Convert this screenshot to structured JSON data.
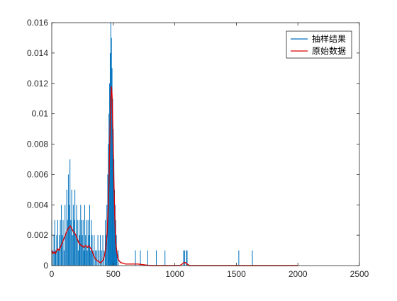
{
  "chart_data": {
    "type": "line",
    "title": "",
    "xlabel": "",
    "ylabel": "",
    "xlim": [
      0,
      2500
    ],
    "ylim": [
      0,
      0.016
    ],
    "x_ticks": [
      0,
      500,
      1000,
      1500,
      2000,
      2500
    ],
    "x_tick_labels": [
      "0",
      "500",
      "1000",
      "1500",
      "2000",
      "2500"
    ],
    "y_ticks": [
      0,
      0.002,
      0.004,
      0.006,
      0.008,
      0.01,
      0.012,
      0.014,
      0.016
    ],
    "y_tick_labels": [
      "0",
      "0.002",
      "0.004",
      "0.006",
      "0.008",
      "0.01",
      "0.012",
      "0.014",
      "0.016"
    ],
    "grid": false,
    "legend_position": "top-right",
    "series": [
      {
        "name": "抽样结果",
        "color": "#0072BD",
        "style": "impulse",
        "points": [
          [
            0,
            0.003
          ],
          [
            10,
            0.001
          ],
          [
            18,
            0.002
          ],
          [
            25,
            0.003
          ],
          [
            32,
            0.001
          ],
          [
            40,
            0.002
          ],
          [
            48,
            0.003
          ],
          [
            55,
            0.001
          ],
          [
            62,
            0.002
          ],
          [
            70,
            0.003
          ],
          [
            78,
            0.004
          ],
          [
            85,
            0.002
          ],
          [
            92,
            0.003
          ],
          [
            100,
            0.001
          ],
          [
            108,
            0.004
          ],
          [
            115,
            0.002
          ],
          [
            122,
            0.005
          ],
          [
            128,
            0.003
          ],
          [
            135,
            0.006
          ],
          [
            142,
            0.004
          ],
          [
            148,
            0.007
          ],
          [
            155,
            0.003
          ],
          [
            162,
            0.005
          ],
          [
            168,
            0.002
          ],
          [
            175,
            0.004
          ],
          [
            182,
            0.003
          ],
          [
            188,
            0.005
          ],
          [
            195,
            0.002
          ],
          [
            202,
            0.004
          ],
          [
            208,
            0.003
          ],
          [
            215,
            0.001
          ],
          [
            222,
            0.003
          ],
          [
            228,
            0.002
          ],
          [
            235,
            0.004
          ],
          [
            242,
            0.003
          ],
          [
            248,
            0.002
          ],
          [
            255,
            0.003
          ],
          [
            262,
            0.001
          ],
          [
            268,
            0.004
          ],
          [
            275,
            0.002
          ],
          [
            282,
            0.003
          ],
          [
            288,
            0.001
          ],
          [
            295,
            0.003
          ],
          [
            302,
            0.002
          ],
          [
            308,
            0.004
          ],
          [
            315,
            0.001
          ],
          [
            322,
            0.003
          ],
          [
            328,
            0.002
          ],
          [
            335,
            0.001
          ],
          [
            345,
            0.002
          ],
          [
            355,
            0.001
          ],
          [
            365,
            0.001
          ],
          [
            375,
            0.002
          ],
          [
            385,
            0.001
          ],
          [
            395,
            0.002
          ],
          [
            405,
            0.001
          ],
          [
            415,
            0.002
          ],
          [
            425,
            0.001
          ],
          [
            435,
            0.003
          ],
          [
            442,
            0.002
          ],
          [
            448,
            0.004
          ],
          [
            455,
            0.006
          ],
          [
            460,
            0.008
          ],
          [
            465,
            0.01
          ],
          [
            470,
            0.012
          ],
          [
            475,
            0.014
          ],
          [
            480,
            0.016
          ],
          [
            485,
            0.015
          ],
          [
            490,
            0.013
          ],
          [
            495,
            0.011
          ],
          [
            500,
            0.009
          ],
          [
            505,
            0.007
          ],
          [
            510,
            0.005
          ],
          [
            515,
            0.004
          ],
          [
            520,
            0.003
          ],
          [
            525,
            0.002
          ],
          [
            530,
            0.001
          ],
          [
            540,
            0.001
          ],
          [
            680,
            0.001
          ],
          [
            720,
            0.001
          ],
          [
            780,
            0.001
          ],
          [
            850,
            0.001
          ],
          [
            920,
            0.001
          ],
          [
            1070,
            0.001
          ],
          [
            1080,
            0.001
          ],
          [
            1095,
            0.001
          ],
          [
            1100,
            0.001
          ],
          [
            1520,
            0.001
          ],
          [
            1630,
            0.001
          ]
        ]
      },
      {
        "name": "原始数据",
        "color": "#D90000",
        "style": "line",
        "points": [
          [
            0,
            0.001
          ],
          [
            10,
            0.0008
          ],
          [
            20,
            0.0009
          ],
          [
            30,
            0.0008
          ],
          [
            40,
            0.001
          ],
          [
            50,
            0.0011
          ],
          [
            60,
            0.001
          ],
          [
            70,
            0.0012
          ],
          [
            80,
            0.0014
          ],
          [
            90,
            0.0016
          ],
          [
            100,
            0.0018
          ],
          [
            110,
            0.002
          ],
          [
            120,
            0.0022
          ],
          [
            130,
            0.0024
          ],
          [
            140,
            0.0025
          ],
          [
            150,
            0.0026
          ],
          [
            160,
            0.0025
          ],
          [
            170,
            0.0023
          ],
          [
            180,
            0.0022
          ],
          [
            190,
            0.0021
          ],
          [
            200,
            0.0019
          ],
          [
            210,
            0.0017
          ],
          [
            220,
            0.0015
          ],
          [
            230,
            0.0014
          ],
          [
            240,
            0.0013
          ],
          [
            250,
            0.0013
          ],
          [
            260,
            0.0012
          ],
          [
            270,
            0.0013
          ],
          [
            280,
            0.0013
          ],
          [
            290,
            0.0012
          ],
          [
            300,
            0.0013
          ],
          [
            310,
            0.0012
          ],
          [
            320,
            0.0011
          ],
          [
            330,
            0.0009
          ],
          [
            340,
            0.0007
          ],
          [
            350,
            0.0005
          ],
          [
            360,
            0.0004
          ],
          [
            370,
            0.0003
          ],
          [
            380,
            0.0003
          ],
          [
            390,
            0.0002
          ],
          [
            400,
            0.0002
          ],
          [
            410,
            0.0003
          ],
          [
            420,
            0.0004
          ],
          [
            430,
            0.0007
          ],
          [
            440,
            0.0012
          ],
          [
            450,
            0.0022
          ],
          [
            460,
            0.004
          ],
          [
            465,
            0.0055
          ],
          [
            470,
            0.0075
          ],
          [
            475,
            0.0095
          ],
          [
            480,
            0.011
          ],
          [
            485,
            0.0118
          ],
          [
            490,
            0.0112
          ],
          [
            495,
            0.0095
          ],
          [
            500,
            0.0075
          ],
          [
            505,
            0.0055
          ],
          [
            510,
            0.0038
          ],
          [
            515,
            0.0025
          ],
          [
            520,
            0.0015
          ],
          [
            530,
            0.0008
          ],
          [
            540,
            0.0004
          ],
          [
            560,
            0.0002
          ],
          [
            600,
            0.0001
          ],
          [
            700,
            0.0001
          ],
          [
            800,
            0.0
          ],
          [
            900,
            0.0
          ],
          [
            1000,
            0.0
          ],
          [
            1040,
            0.0
          ],
          [
            1060,
            0.0001
          ],
          [
            1075,
            0.0002
          ],
          [
            1085,
            0.0002
          ],
          [
            1100,
            0.0001
          ],
          [
            1120,
            0.0
          ],
          [
            1200,
            0.0
          ],
          [
            1400,
            0.0
          ],
          [
            1600,
            0.0
          ],
          [
            1800,
            0.0
          ],
          [
            2000,
            0.0
          ]
        ]
      }
    ]
  }
}
